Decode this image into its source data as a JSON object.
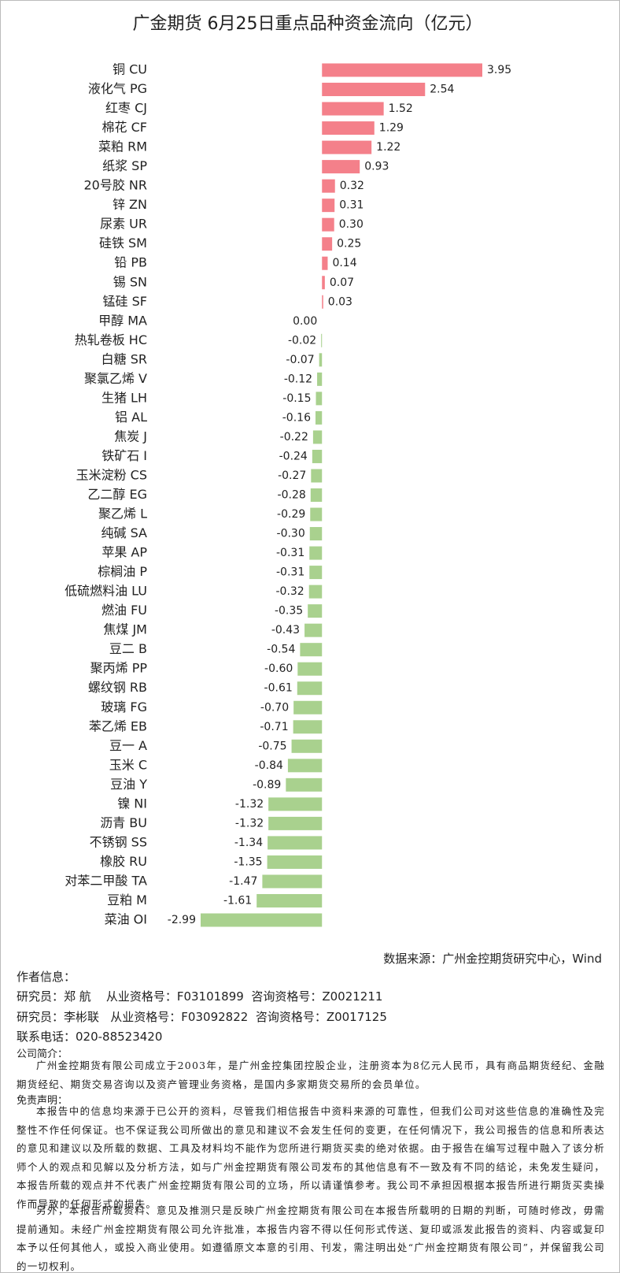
{
  "chart_data": {
    "type": "bar",
    "orientation": "horizontal",
    "title": "广金期货 6月25日重点品种资金流向（亿元）",
    "categories": [
      "铜 CU",
      "液化气 PG",
      "红枣 CJ",
      "棉花 CF",
      "菜粕 RM",
      "纸浆 SP",
      "20号胶 NR",
      "锌 ZN",
      "尿素 UR",
      "硅铁 SM",
      "铅 PB",
      "锡 SN",
      "锰硅 SF",
      "甲醇 MA",
      "热轧卷板 HC",
      "白糖 SR",
      "聚氯乙烯 V",
      "生猪 LH",
      "铝 AL",
      "焦炭 J",
      "铁矿石 I",
      "玉米淀粉 CS",
      "乙二醇 EG",
      "聚乙烯 L",
      "纯碱 SA",
      "苹果 AP",
      "棕榈油 P",
      "低硫燃料油 LU",
      "燃油 FU",
      "焦煤 JM",
      "豆二 B",
      "聚丙烯 PP",
      "螺纹钢 RB",
      "玻璃 FG",
      "苯乙烯 EB",
      "豆一 A",
      "玉米 C",
      "豆油 Y",
      "镍 NI",
      "沥青 BU",
      "不锈钢 SS",
      "橡胶 RU",
      "对苯二甲酸 TA",
      "豆粕 M",
      "菜油 OI"
    ],
    "values": [
      3.95,
      2.54,
      1.52,
      1.29,
      1.22,
      0.93,
      0.32,
      0.31,
      0.3,
      0.25,
      0.14,
      0.07,
      0.03,
      0.0,
      -0.02,
      -0.07,
      -0.12,
      -0.15,
      -0.16,
      -0.22,
      -0.24,
      -0.27,
      -0.28,
      -0.29,
      -0.3,
      -0.31,
      -0.31,
      -0.32,
      -0.35,
      -0.43,
      -0.54,
      -0.6,
      -0.61,
      -0.7,
      -0.71,
      -0.75,
      -0.84,
      -0.89,
      -1.32,
      -1.32,
      -1.34,
      -1.35,
      -1.47,
      -1.61,
      -2.99
    ],
    "value_labels": [
      "3.95",
      "2.54",
      "1.52",
      "1.29",
      "1.22",
      "0.93",
      "0.32",
      "0.31",
      "0.30",
      "0.25",
      "0.14",
      "0.07",
      "0.03",
      "0.00",
      "-0.02",
      "-0.07",
      "-0.12",
      "-0.15",
      "-0.16",
      "-0.22",
      "-0.24",
      "-0.27",
      "-0.28",
      "-0.29",
      "-0.30",
      "-0.31",
      "-0.31",
      "-0.32",
      "-0.35",
      "-0.43",
      "-0.54",
      "-0.60",
      "-0.61",
      "-0.70",
      "-0.71",
      "-0.75",
      "-0.84",
      "-0.89",
      "-1.32",
      "-1.32",
      "-1.34",
      "-1.35",
      "-1.47",
      "-1.61",
      "-2.99"
    ],
    "positive_color": "#f4808a",
    "negative_color": "#a9d18e"
  },
  "footer": {
    "source": "数据来源：广州金控期货研究中心，Wind",
    "author_heading": "作者信息：",
    "analyst_1": "研究员：郑 航    从业资格号：F03101899  咨询资格号：Z0021211",
    "analyst_2": "研究员：李彬联   从业资格号：F03092822  咨询资格号：Z0017125",
    "phone": "联系电话：020-88523420",
    "profile_heading": "公司简介：",
    "profile": "广州金控期货有限公司成立于2003年，是广州金控集团控股企业，注册资本为8亿元人民币，具有商品期货经纪、金融期货经纪、期货交易咨询以及资产管理业务资格，是国内多家期货交易所的会员单位。",
    "disclaimer_heading": "免责声明：",
    "disclaimer_1": "本报告中的信息均来源于已公开的资料，尽管我们相信报告中资料来源的可靠性，但我们公司对这些信息的准确性及完整性不作任何保证。也不保证我公司所做出的意见和建议不会发生任何的变更，在任何情况下，我公司报告的信息和所表达的意见和建议以及所载的数据、工具及材料均不能作为您所进行期货买卖的绝对依据。由于报告在编写过程中融入了该分析师个人的观点和见解以及分析方法，如与广州金控期货有限公司发布的其他信息有不一致及有不同的结论，未免发生疑问，本报告所载的观点并不代表广州金控期货有限公司的立场，所以请谨慎参考。我公司不承担因根据本报告所进行期货买卖操作而导致的任何形式的损失。",
    "disclaimer_2": "另外，本报告所载资料、意见及推测只是反映广州金控期货有限公司在本报告所载明的日期的判断，可随时修改，毋需提前通知。未经广州金控期货有限公司允许批准，本报告内容不得以任何形式传送、复印或派发此报告的资料、内容或复印本予以任何其他人，或投入商业使用。如遵循原文本意的引用、刊发，需注明出处“广州金控期货有限公司”，并保留我公司的一切权利。"
  }
}
